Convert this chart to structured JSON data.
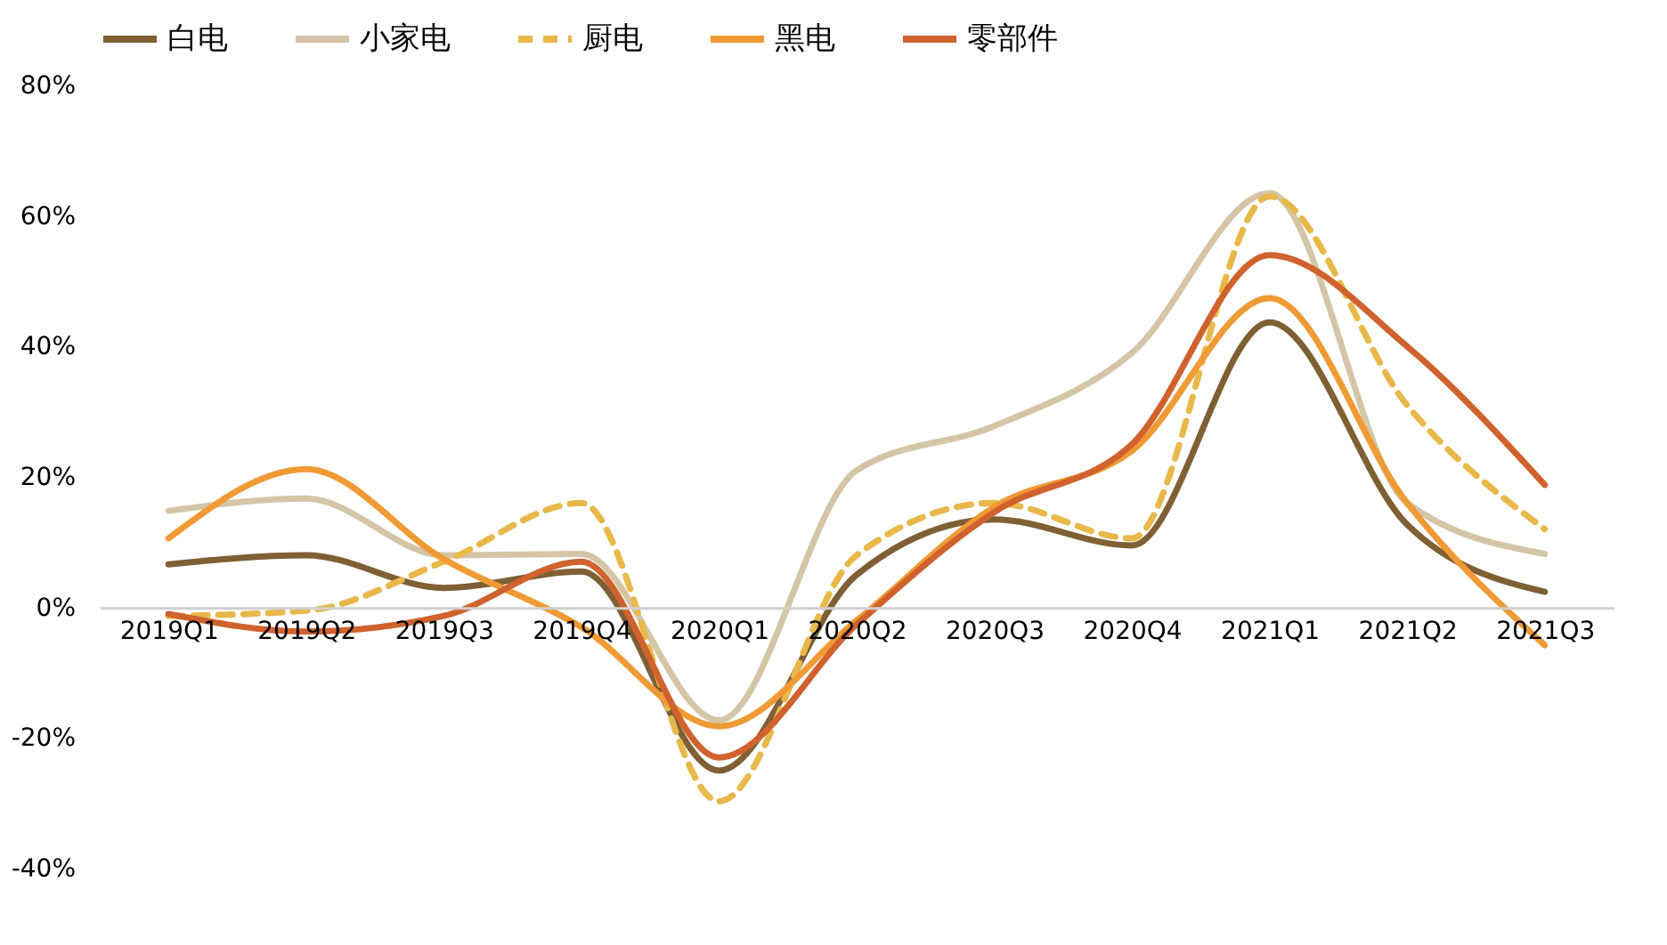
{
  "chart_data": {
    "type": "line",
    "categories": [
      "2019Q1",
      "2019Q2",
      "2019Q3",
      "2019Q4",
      "2020Q1",
      "2020Q2",
      "2020Q3",
      "2020Q4",
      "2021Q1",
      "2021Q2",
      "2021Q3"
    ],
    "series": [
      {
        "name": "白电",
        "color": "#7f5f34",
        "line_style": "solid",
        "values": [
          6.6,
          8,
          3,
          5.5,
          -25,
          5,
          13.5,
          9.5,
          43.7,
          12.7,
          2.4
        ]
      },
      {
        "name": "小家电",
        "color": "#d4c5a6",
        "line_style": "solid",
        "values": [
          14.8,
          16.7,
          8,
          8.2,
          -17.3,
          21,
          27.8,
          39,
          63.5,
          16,
          8.2
        ]
      },
      {
        "name": "厨电",
        "color": "#e8b84a",
        "line_style": "dashed",
        "values": [
          -1.3,
          -0.5,
          7,
          16,
          -29.7,
          8,
          16,
          10.6,
          63,
          31,
          12
        ]
      },
      {
        "name": "黑电",
        "color": "#ef9a35",
        "line_style": "solid",
        "values": [
          10.6,
          21.2,
          7.4,
          -3,
          -18.2,
          -2,
          15.4,
          24,
          47.4,
          16,
          -5.8
        ]
      },
      {
        "name": "零部件",
        "color": "#d0622e",
        "line_style": "solid",
        "values": [
          -1,
          -3.7,
          -1.3,
          7,
          -23,
          -2.6,
          14.6,
          25,
          54,
          40,
          18.8
        ]
      }
    ],
    "ylim": [
      -40,
      80
    ],
    "yticks": [
      {
        "value": -40,
        "label": "-40%"
      },
      {
        "value": -20,
        "label": "-20%"
      },
      {
        "value": 0,
        "label": "0%"
      },
      {
        "value": 20,
        "label": "20%"
      },
      {
        "value": 40,
        "label": "40%"
      },
      {
        "value": 60,
        "label": "60%"
      },
      {
        "value": 80,
        "label": "80%"
      }
    ],
    "grid": false,
    "legend": "top"
  }
}
